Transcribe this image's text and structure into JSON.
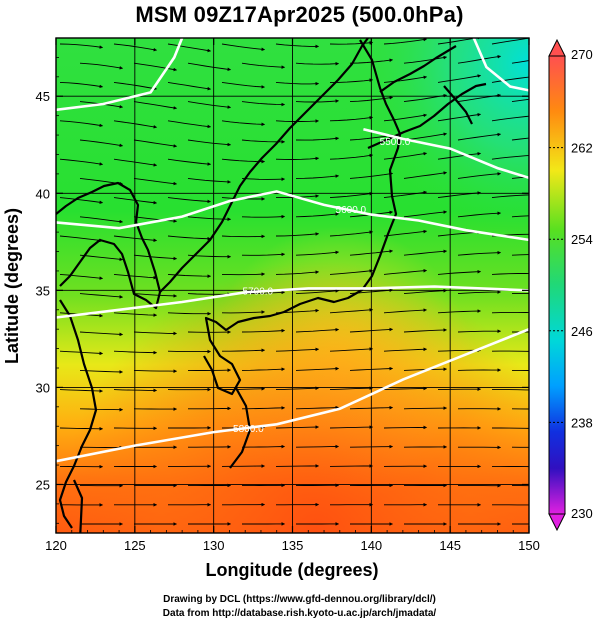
{
  "title": "MSM 09Z17Apr2025 (500.0hPa)",
  "credits": {
    "line1": "Drawing by DCL (https://www.gfd-dennou.org/library/dcl/)",
    "line2": "Data from http://database.rish.kyoto-u.ac.jp/arch/jmadata/"
  },
  "map": {
    "xlabel": "Longitude (degrees)",
    "ylabel": "Latitude  (degrees)",
    "lon_range": [
      120,
      150
    ],
    "lat_range": [
      22.5,
      48
    ],
    "lon_ticks": [
      "120",
      "125",
      "130",
      "135",
      "140",
      "145",
      "150"
    ],
    "lat_ticks": [
      "25",
      "30",
      "35",
      "40",
      "45"
    ],
    "lon_tick_values": [
      120,
      125,
      130,
      135,
      140,
      145,
      150
    ],
    "lat_tick_values": [
      25,
      30,
      35,
      40,
      45
    ],
    "contour_labels": [
      "5500.0",
      "5600.0",
      "5700.0",
      "5800.0"
    ],
    "contours": [
      {
        "value": "5500.0",
        "points": [
          [
            139.5,
            43.3
          ],
          [
            142,
            42.8
          ],
          [
            145,
            42.3
          ],
          [
            148,
            41.3
          ],
          [
            150,
            40.8
          ]
        ],
        "label_at": [
          141.5,
          42.7
        ]
      },
      {
        "value": "5600.0",
        "points": [
          [
            120,
            38.5
          ],
          [
            124,
            38.2
          ],
          [
            128,
            38.8
          ],
          [
            131,
            39.6
          ],
          [
            134,
            40.1
          ],
          [
            137,
            39.4
          ],
          [
            140,
            38.9
          ],
          [
            143,
            38.6
          ],
          [
            146,
            38.1
          ],
          [
            150,
            37.6
          ]
        ],
        "label_at": [
          138.7,
          39.2
        ]
      },
      {
        "value": "5700.0",
        "points": [
          [
            120,
            33.6
          ],
          [
            124,
            34.0
          ],
          [
            128,
            34.4
          ],
          [
            132,
            34.9
          ],
          [
            136,
            35.1
          ],
          [
            140,
            35.1
          ],
          [
            144,
            35.2
          ],
          [
            150,
            35.0
          ]
        ],
        "label_at": [
          132.8,
          35.0
        ]
      },
      {
        "value": "5800.0",
        "points": [
          [
            120,
            26.2
          ],
          [
            125,
            27.0
          ],
          [
            130,
            27.7
          ],
          [
            134,
            28.1
          ],
          [
            138,
            28.9
          ],
          [
            142,
            30.4
          ],
          [
            146,
            31.7
          ],
          [
            150,
            33.0
          ]
        ],
        "label_at": [
          132.2,
          27.9
        ]
      },
      {
        "value": "",
        "points": [
          [
            120,
            44.3
          ],
          [
            123,
            44.6
          ],
          [
            126,
            45.2
          ],
          [
            127.5,
            47
          ],
          [
            128,
            48
          ]
        ],
        "label_at": null
      },
      {
        "value": "",
        "points": [
          [
            146.5,
            48
          ],
          [
            147.3,
            46.5
          ],
          [
            148.8,
            45.5
          ],
          [
            150,
            45.3
          ]
        ],
        "label_at": null
      }
    ],
    "gridlines": true,
    "vector_field": "wind streamlines",
    "coastline": "Japan and East Asia"
  },
  "colorbar": {
    "min": 230,
    "max": 270,
    "tick_labels": [
      "270",
      "262",
      "254",
      "246",
      "238",
      "230"
    ],
    "tick_values": [
      270,
      262,
      254,
      246,
      238,
      230
    ],
    "colors": [
      "#ff2bff",
      "#b000ff",
      "#1010d0",
      "#0060ff",
      "#00b4ff",
      "#00e8d0",
      "#18e060",
      "#30e020",
      "#90e010",
      "#f0e010",
      "#ffa000",
      "#ff5a10",
      "#ff4040"
    ]
  }
}
